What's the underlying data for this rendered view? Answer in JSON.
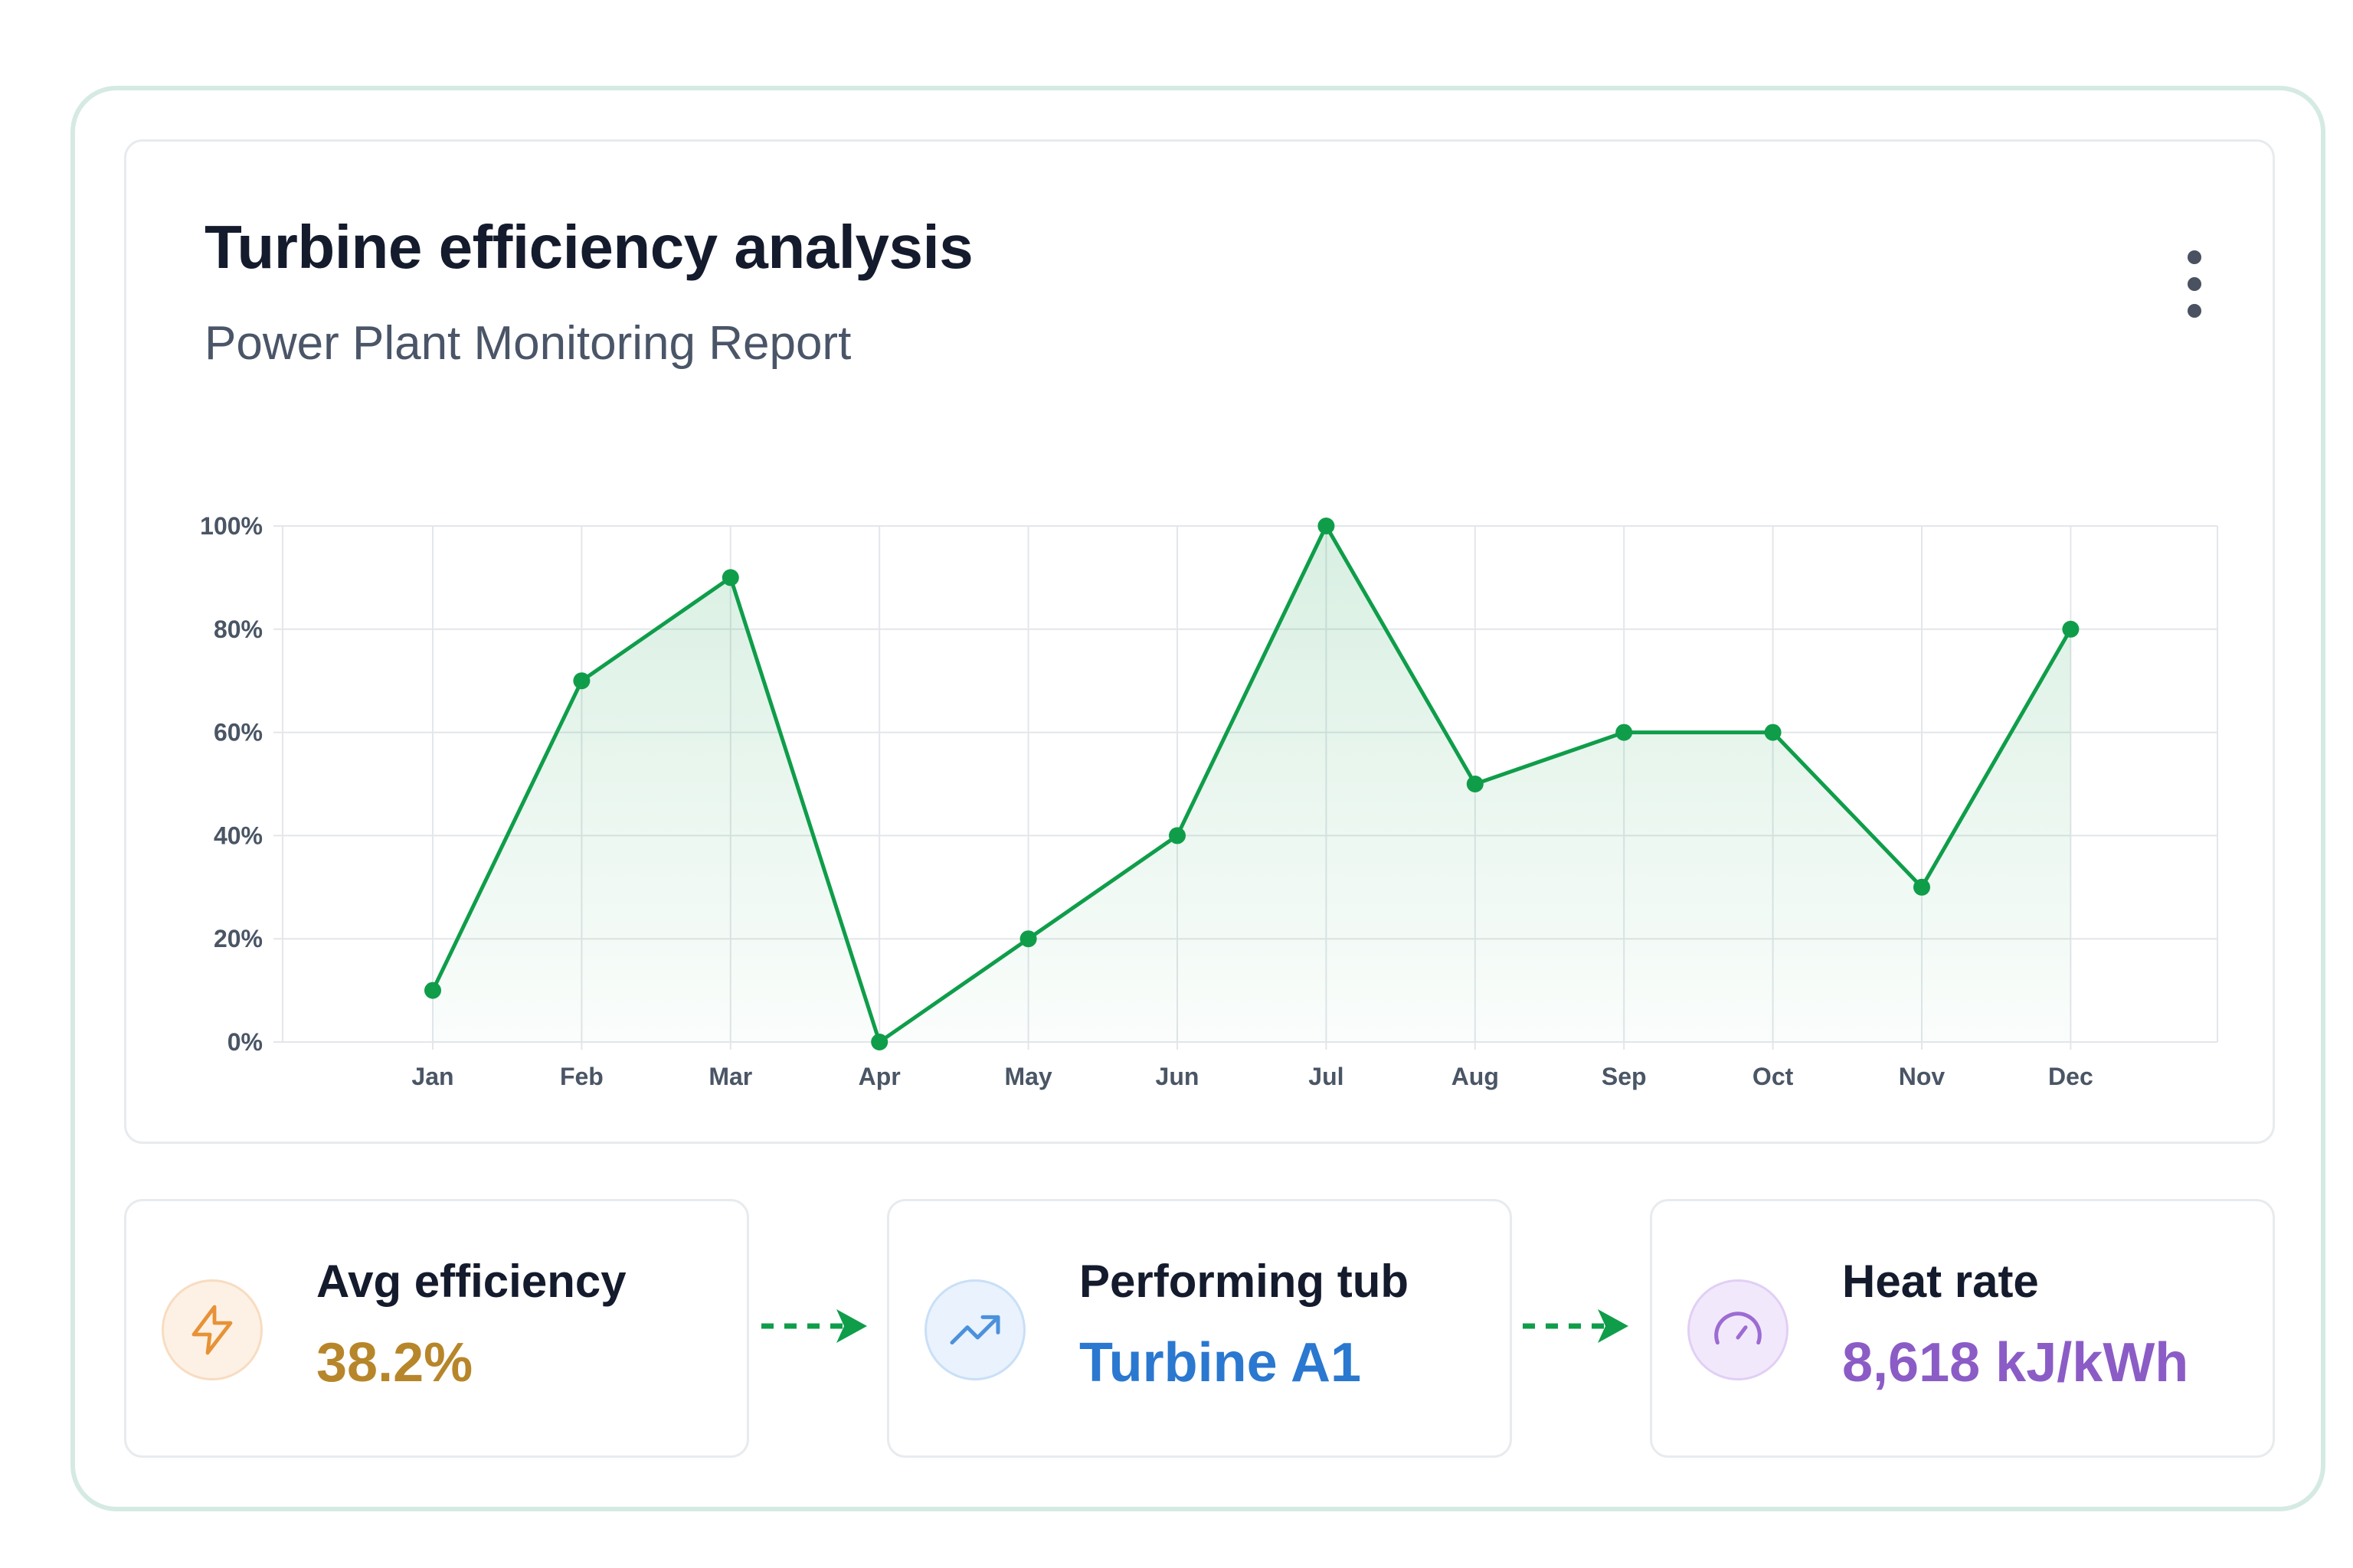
{
  "header": {
    "title": "Turbine efficiency analysis",
    "subtitle": "Power Plant Monitoring Report",
    "menu_icon": "more-vertical-icon"
  },
  "chart_data": {
    "type": "area",
    "title": "",
    "xlabel": "",
    "ylabel": "",
    "categories": [
      "Jan",
      "Feb",
      "Mar",
      "Apr",
      "May",
      "Jun",
      "Jul",
      "Aug",
      "Sep",
      "Oct",
      "Nov",
      "Dec"
    ],
    "series": [
      {
        "values": [
          10,
          70,
          90,
          0,
          20,
          40,
          100,
          50,
          60,
          60,
          30,
          80
        ]
      }
    ],
    "ylim": [
      0,
      100
    ],
    "yticks": [
      "0%",
      "20%",
      "40%",
      "60%",
      "80%",
      "100%"
    ],
    "grid": true,
    "line_color": "#0f9d4a",
    "fill_color": "#0f9d4a"
  },
  "stats": [
    {
      "label": "Avg efficiency",
      "value": "38.2%",
      "icon": "lightning-icon",
      "color": "#b7862a",
      "icon_bg": "#fdf1e6",
      "icon_border": "#f8dcc0",
      "icon_color": "#e79236"
    },
    {
      "label": "Performing tub",
      "value": "Turbine A1",
      "icon": "trending-up-icon",
      "color": "#2a78d0",
      "icon_bg": "#e9f2fd",
      "icon_border": "#c9dff7",
      "icon_color": "#4b91dc"
    },
    {
      "label": "Heat rate",
      "value": "8,618 kJ/kWh",
      "icon": "gauge-icon",
      "color": "#8b5cc6",
      "icon_bg": "#f2e8fb",
      "icon_border": "#e1cff5",
      "icon_color": "#9c6bd3"
    }
  ],
  "flow_arrow_color": "#0f9d4a"
}
